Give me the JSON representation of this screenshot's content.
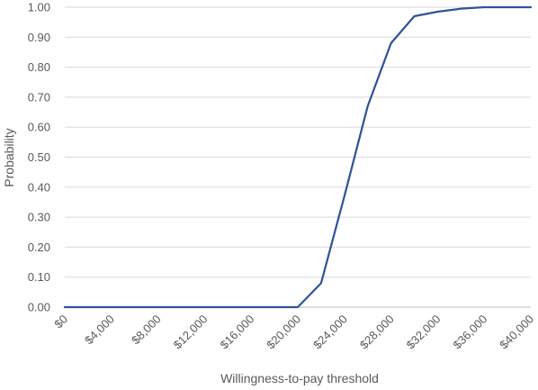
{
  "chart_data": {
    "type": "line",
    "title": "",
    "xlabel": "Willingness-to-pay threshold",
    "ylabel": "Probability",
    "x": [
      0,
      2000,
      4000,
      6000,
      8000,
      10000,
      12000,
      14000,
      16000,
      18000,
      20000,
      22000,
      24000,
      26000,
      28000,
      30000,
      32000,
      34000,
      36000,
      38000,
      40000
    ],
    "series": [
      {
        "name": "",
        "values": [
          0,
          0,
          0,
          0,
          0,
          0,
          0,
          0,
          0,
          0,
          0,
          0.08,
          0.37,
          0.67,
          0.88,
          0.97,
          0.985,
          0.995,
          1.0,
          1.0,
          1.0
        ]
      }
    ],
    "xlim": [
      0,
      40000
    ],
    "ylim": [
      0,
      1
    ],
    "x_ticks": [
      "$0",
      "$4,000",
      "$8,000",
      "$12,000",
      "$16,000",
      "$20,000",
      "$24,000",
      "$28,000",
      "$32,000",
      "$36,000",
      "$40,000"
    ],
    "y_ticks": [
      "0.00",
      "0.10",
      "0.20",
      "0.30",
      "0.40",
      "0.50",
      "0.60",
      "0.70",
      "0.80",
      "0.90",
      "1.00"
    ],
    "grid": true,
    "legend": "none",
    "colors": {
      "line": "#2f5597",
      "grid": "#d9d9d9",
      "text": "#595959"
    }
  }
}
